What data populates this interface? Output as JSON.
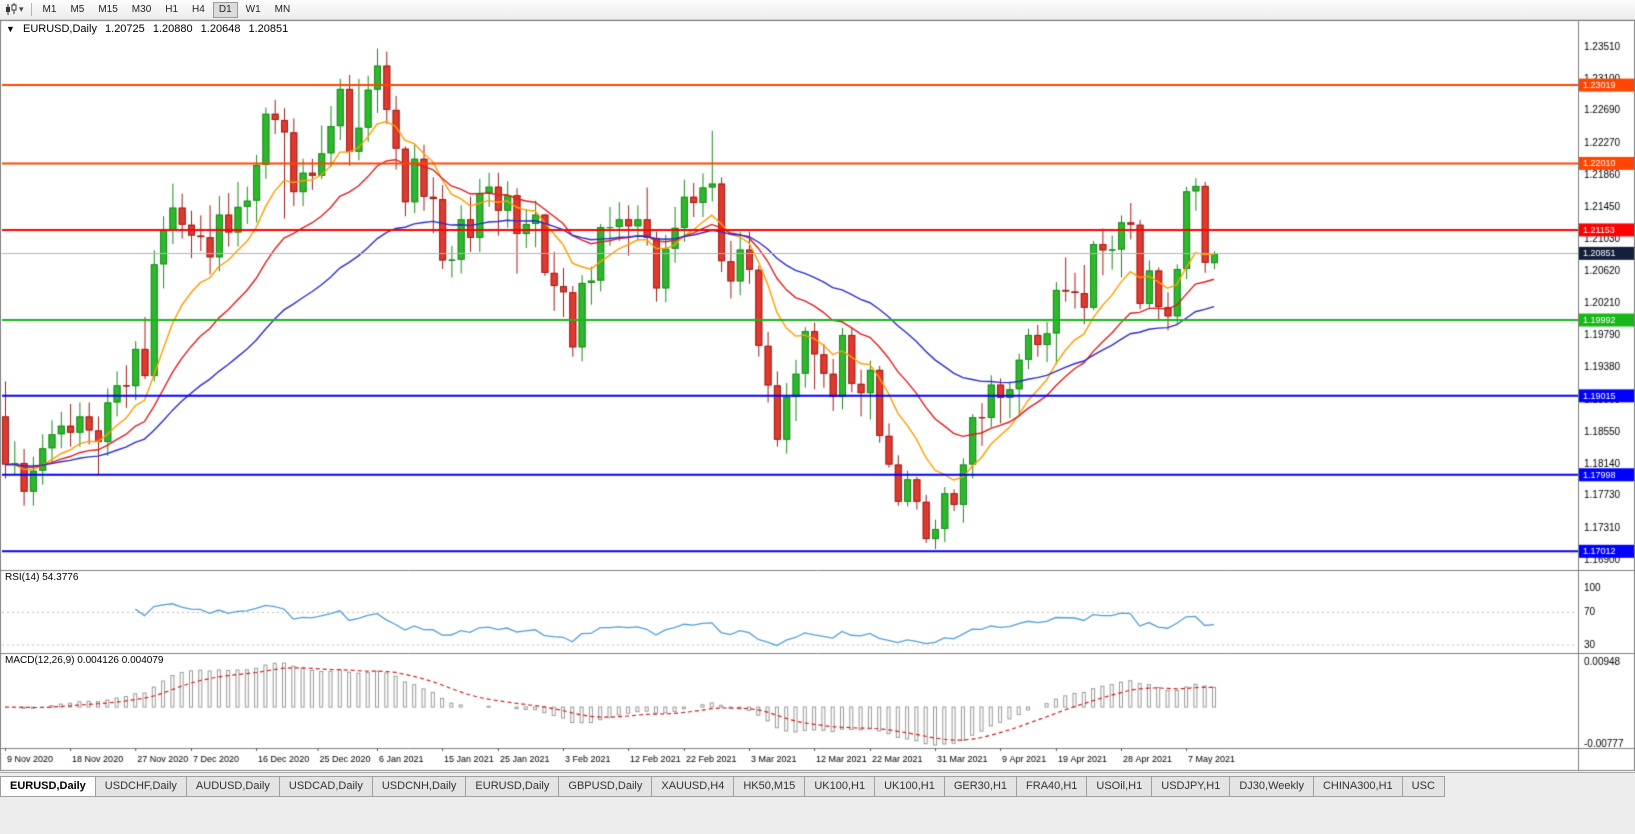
{
  "toolbar": {
    "timeframes": [
      "M1",
      "M5",
      "M15",
      "M30",
      "H1",
      "H4",
      "D1",
      "W1",
      "MN"
    ],
    "active_timeframe": "D1"
  },
  "chart_header": {
    "arrow": "▼",
    "symbol_period": "EURUSD,Daily",
    "open": "1.20725",
    "high": "1.20880",
    "low": "1.20648",
    "close": "1.20851"
  },
  "chart_data": {
    "type": "candlestick",
    "symbol": "EURUSD",
    "timeframe": "Daily",
    "price_axis_range": [
      1.169,
      1.2351
    ],
    "price_axis_labels": [
      "1.23510",
      "1.23100",
      "1.22690",
      "1.22270",
      "1.21860",
      "1.21450",
      "1.21030",
      "1.20620",
      "1.20210",
      "1.19790",
      "1.19380",
      "1.18960",
      "1.18550",
      "1.18140",
      "1.17730",
      "1.17310",
      "1.16900"
    ],
    "date_axis_labels": [
      {
        "label": "9 Nov 2020",
        "i": 0
      },
      {
        "label": "18 Nov 2020",
        "i": 7
      },
      {
        "label": "27 Nov 2020",
        "i": 14
      },
      {
        "label": "7 Dec 2020",
        "i": 20
      },
      {
        "label": "16 Dec 2020",
        "i": 27
      },
      {
        "label": "25 Dec 2020",
        "i": 33.6
      },
      {
        "label": "6 Jan 2021",
        "i": 40
      },
      {
        "label": "15 Jan 2021",
        "i": 47
      },
      {
        "label": "25 Jan 2021",
        "i": 53
      },
      {
        "label": "3 Feb 2021",
        "i": 60
      },
      {
        "label": "12 Feb 2021",
        "i": 67
      },
      {
        "label": "22 Feb 2021",
        "i": 73
      },
      {
        "label": "3 Mar 2021",
        "i": 80
      },
      {
        "label": "12 Mar 2021",
        "i": 87
      },
      {
        "label": "22 Mar 2021",
        "i": 93
      },
      {
        "label": "31 Mar 2021",
        "i": 100
      },
      {
        "label": "9 Apr 2021",
        "i": 107
      },
      {
        "label": "19 Apr 2021",
        "i": 113
      },
      {
        "label": "28 Apr 2021",
        "i": 120
      },
      {
        "label": "7 May 2021",
        "i": 127
      }
    ],
    "columns": [
      "date",
      "open",
      "high",
      "low",
      "close"
    ],
    "candles": [
      [
        "9 Nov 2020",
        1.1875,
        1.192,
        1.1795,
        1.1813
      ],
      [
        "10 Nov 2020",
        1.1813,
        1.1843,
        1.18,
        1.1815
      ],
      [
        "11 Nov 2020",
        1.1815,
        1.1833,
        1.176,
        1.1778
      ],
      [
        "12 Nov 2020",
        1.1778,
        1.1823,
        1.176,
        1.1805
      ],
      [
        "13 Nov 2020",
        1.1805,
        1.1852,
        1.1787,
        1.1834
      ],
      [
        "16 Nov 2020",
        1.1834,
        1.187,
        1.1816,
        1.1852
      ],
      [
        "17 Nov 2020",
        1.1852,
        1.1881,
        1.1834,
        1.1863
      ],
      [
        "18 Nov 2020",
        1.1863,
        1.1891,
        1.1836,
        1.1854
      ],
      [
        "19 Nov 2020",
        1.1854,
        1.1893,
        1.1836,
        1.1875
      ],
      [
        "20 Nov 2020",
        1.1875,
        1.1893,
        1.1839,
        1.1857
      ],
      [
        "23 Nov 2020",
        1.1857,
        1.1875,
        1.18,
        1.1842
      ],
      [
        "24 Nov 2020",
        1.1842,
        1.1911,
        1.1824,
        1.1893
      ],
      [
        "25 Nov 2020",
        1.1893,
        1.1933,
        1.1875,
        1.1915
      ],
      [
        "26 Nov 2020",
        1.1915,
        1.1941,
        1.1886,
        1.1914
      ],
      [
        "27 Nov 2020",
        1.1914,
        1.1972,
        1.1896,
        1.1962
      ],
      [
        "30 Nov 2020",
        1.1962,
        1.2003,
        1.1923,
        1.1927
      ],
      [
        "1 Dec 2020",
        1.1927,
        1.2089,
        1.192,
        1.2071
      ],
      [
        "2 Dec 2020",
        1.2071,
        1.2133,
        1.204,
        1.2115
      ],
      [
        "3 Dec 2020",
        1.2115,
        1.2175,
        1.2097,
        1.2144
      ],
      [
        "4 Dec 2020",
        1.2144,
        1.2162,
        1.2104,
        1.2122
      ],
      [
        "7 Dec 2020",
        1.2122,
        1.214,
        1.2079,
        1.2108
      ],
      [
        "8 Dec 2020",
        1.2108,
        1.2134,
        1.2088,
        1.2106
      ],
      [
        "9 Dec 2020",
        1.2106,
        1.2147,
        1.2058,
        1.208
      ],
      [
        "10 Dec 2020",
        1.208,
        1.2159,
        1.2062,
        1.2135
      ],
      [
        "11 Dec 2020",
        1.2135,
        1.2163,
        1.2094,
        1.2112
      ],
      [
        "14 Dec 2020",
        1.2112,
        1.2177,
        1.2094,
        1.2145
      ],
      [
        "15 Dec 2020",
        1.2145,
        1.2171,
        1.2123,
        1.2153
      ],
      [
        "16 Dec 2020",
        1.2153,
        1.2212,
        1.2125,
        1.2199
      ],
      [
        "17 Dec 2020",
        1.2199,
        1.2273,
        1.2181,
        1.2265
      ],
      [
        "18 Dec 2020",
        1.2265,
        1.2283,
        1.2239,
        1.2257
      ],
      [
        "21 Dec 2020",
        1.2257,
        1.2272,
        1.213,
        1.2241
      ],
      [
        "22 Dec 2020",
        1.2241,
        1.2259,
        1.2146,
        1.2164
      ],
      [
        "23 Dec 2020",
        1.2164,
        1.2207,
        1.2146,
        1.2189
      ],
      [
        "24 Dec 2020",
        1.2189,
        1.2207,
        1.2167,
        1.2185
      ],
      [
        "28 Dec 2020",
        1.2185,
        1.225,
        1.2181,
        1.2214
      ],
      [
        "29 Dec 2020",
        1.2214,
        1.2275,
        1.2196,
        1.2249
      ],
      [
        "30 Dec 2020",
        1.2249,
        1.231,
        1.2231,
        1.2297
      ],
      [
        "31 Dec 2020",
        1.2297,
        1.2315,
        1.2198,
        1.2216
      ],
      [
        "4 Jan 2021",
        1.2216,
        1.231,
        1.2205,
        1.2247
      ],
      [
        "5 Jan 2021",
        1.2247,
        1.2314,
        1.2229,
        1.2296
      ],
      [
        "6 Jan 2021",
        1.2296,
        1.2349,
        1.2266,
        1.2327
      ],
      [
        "7 Jan 2021",
        1.2327,
        1.2345,
        1.2252,
        1.227
      ],
      [
        "8 Jan 2021",
        1.227,
        1.2288,
        1.2193,
        1.222
      ],
      [
        "11 Jan 2021",
        1.222,
        1.2223,
        1.2133,
        1.2151
      ],
      [
        "12 Jan 2021",
        1.2151,
        1.2225,
        1.2137,
        1.2207
      ],
      [
        "13 Jan 2021",
        1.2207,
        1.2225,
        1.214,
        1.2158
      ],
      [
        "14 Jan 2021",
        1.2158,
        1.2183,
        1.2111,
        1.2155
      ],
      [
        "15 Jan 2021",
        1.2155,
        1.2173,
        1.2065,
        1.2076
      ],
      [
        "18 Jan 2021",
        1.2076,
        1.2095,
        1.2054,
        1.2077
      ],
      [
        "19 Jan 2021",
        1.2077,
        1.2147,
        1.2059,
        1.2129
      ],
      [
        "20 Jan 2021",
        1.2129,
        1.2158,
        1.2087,
        1.2105
      ],
      [
        "21 Jan 2021",
        1.2105,
        1.2181,
        1.2087,
        1.2163
      ],
      [
        "22 Jan 2021",
        1.2163,
        1.2189,
        1.2145,
        1.2171
      ],
      [
        "25 Jan 2021",
        1.2171,
        1.2189,
        1.2108,
        1.214
      ],
      [
        "26 Jan 2021",
        1.214,
        1.2178,
        1.2118,
        1.216
      ],
      [
        "27 Jan 2021",
        1.216,
        1.2169,
        1.2059,
        1.211
      ],
      [
        "28 Jan 2021",
        1.211,
        1.2142,
        1.2092,
        1.2123
      ],
      [
        "29 Jan 2021",
        1.2123,
        1.2153,
        1.2093,
        1.2135
      ],
      [
        "1 Feb 2021",
        1.2135,
        1.2136,
        1.2056,
        1.206
      ],
      [
        "2 Feb 2021",
        1.206,
        1.2087,
        1.2011,
        1.2043
      ],
      [
        "3 Feb 2021",
        1.2043,
        1.2066,
        1.2003,
        1.2035
      ],
      [
        "4 Feb 2021",
        1.2035,
        1.2043,
        1.1952,
        1.1964
      ],
      [
        "5 Feb 2021",
        1.1964,
        1.2057,
        1.1946,
        1.2047
      ],
      [
        "8 Feb 2021",
        1.2047,
        1.2068,
        1.2019,
        1.205
      ],
      [
        "9 Feb 2021",
        1.205,
        1.2123,
        1.2036,
        1.2119
      ],
      [
        "10 Feb 2021",
        1.2119,
        1.2145,
        1.2095,
        1.2119
      ],
      [
        "11 Feb 2021",
        1.2119,
        1.2151,
        1.2101,
        1.2129
      ],
      [
        "12 Feb 2021",
        1.2129,
        1.2147,
        1.2082,
        1.212
      ],
      [
        "15 Feb 2021",
        1.212,
        1.2147,
        1.2102,
        1.2129
      ],
      [
        "16 Feb 2021",
        1.2129,
        1.217,
        1.2095,
        1.2105
      ],
      [
        "17 Feb 2021",
        1.2105,
        1.2113,
        1.2023,
        1.204
      ],
      [
        "18 Feb 2021",
        1.204,
        1.2109,
        1.2022,
        1.2091
      ],
      [
        "19 Feb 2021",
        1.2091,
        1.2145,
        1.2073,
        1.2118
      ],
      [
        "22 Feb 2021",
        1.2118,
        1.218,
        1.21,
        1.2158
      ],
      [
        "23 Feb 2021",
        1.2158,
        1.2176,
        1.2132,
        1.215
      ],
      [
        "24 Feb 2021",
        1.215,
        1.2188,
        1.2132,
        1.217
      ],
      [
        "25 Feb 2021",
        1.217,
        1.2243,
        1.2152,
        1.2175
      ],
      [
        "26 Feb 2021",
        1.2175,
        1.2183,
        1.2061,
        1.2075
      ],
      [
        "1 Mar 2021",
        1.2075,
        1.2101,
        1.2027,
        1.2049
      ],
      [
        "2 Mar 2021",
        1.2049,
        1.2113,
        1.2031,
        1.209
      ],
      [
        "3 Mar 2021",
        1.209,
        1.2113,
        1.2046,
        1.2064
      ],
      [
        "4 Mar 2021",
        1.2064,
        1.2069,
        1.1952,
        1.1966
      ],
      [
        "5 Mar 2021",
        1.1966,
        1.1984,
        1.1893,
        1.1915
      ],
      [
        "8 Mar 2021",
        1.1915,
        1.1933,
        1.1836,
        1.1845
      ],
      [
        "9 Mar 2021",
        1.1845,
        1.1918,
        1.1827,
        1.19
      ],
      [
        "10 Mar 2021",
        1.19,
        1.1948,
        1.1869,
        1.193
      ],
      [
        "11 Mar 2021",
        1.193,
        1.199,
        1.1912,
        1.1985
      ],
      [
        "12 Mar 2021",
        1.1985,
        1.1996,
        1.191,
        1.1955
      ],
      [
        "15 Mar 2021",
        1.1955,
        1.1968,
        1.1912,
        1.193
      ],
      [
        "16 Mar 2021",
        1.193,
        1.1949,
        1.1882,
        1.19
      ],
      [
        "17 Mar 2021",
        1.19,
        1.1989,
        1.1884,
        1.198
      ],
      [
        "18 Mar 2021",
        1.198,
        1.1989,
        1.1906,
        1.1917
      ],
      [
        "19 Mar 2021",
        1.1917,
        1.1935,
        1.1875,
        1.1905
      ],
      [
        "22 Mar 2021",
        1.1905,
        1.1947,
        1.1871,
        1.1935
      ],
      [
        "23 Mar 2021",
        1.1935,
        1.194,
        1.1841,
        1.185
      ],
      [
        "24 Mar 2021",
        1.185,
        1.1866,
        1.1809,
        1.1813
      ],
      [
        "25 Mar 2021",
        1.1813,
        1.1825,
        1.176,
        1.1765
      ],
      [
        "26 Mar 2021",
        1.1765,
        1.1805,
        1.1759,
        1.1794
      ],
      [
        "29 Mar 2021",
        1.1794,
        1.1797,
        1.1755,
        1.1765
      ],
      [
        "30 Mar 2021",
        1.1765,
        1.1774,
        1.1712,
        1.1717
      ],
      [
        "31 Mar 2021",
        1.1717,
        1.1742,
        1.1704,
        1.173
      ],
      [
        "1 Apr 2021",
        1.173,
        1.1784,
        1.1713,
        1.1776
      ],
      [
        "2 Apr 2021",
        1.1776,
        1.1781,
        1.1753,
        1.1761
      ],
      [
        "5 Apr 2021",
        1.1761,
        1.1821,
        1.1738,
        1.1813
      ],
      [
        "6 Apr 2021",
        1.1813,
        1.1878,
        1.1795,
        1.1874
      ],
      [
        "7 Apr 2021",
        1.1874,
        1.1892,
        1.1837,
        1.1873
      ],
      [
        "8 Apr 2021",
        1.1873,
        1.1928,
        1.1861,
        1.1916
      ],
      [
        "9 Apr 2021",
        1.1916,
        1.1924,
        1.1866,
        1.1899
      ],
      [
        "12 Apr 2021",
        1.1899,
        1.192,
        1.1873,
        1.191
      ],
      [
        "13 Apr 2021",
        1.191,
        1.1956,
        1.1878,
        1.1948
      ],
      [
        "14 Apr 2021",
        1.1948,
        1.1988,
        1.1936,
        1.198
      ],
      [
        "15 Apr 2021",
        1.198,
        1.1993,
        1.1952,
        1.1967
      ],
      [
        "16 Apr 2021",
        1.1967,
        1.1997,
        1.1945,
        1.1982
      ],
      [
        "19 Apr 2021",
        1.1982,
        1.2048,
        1.1942,
        1.2038
      ],
      [
        "20 Apr 2021",
        1.2038,
        1.208,
        1.2023,
        1.2036
      ],
      [
        "21 Apr 2021",
        1.2036,
        1.206,
        1.2014,
        1.2034
      ],
      [
        "22 Apr 2021",
        1.2034,
        1.207,
        1.1994,
        1.2015
      ],
      [
        "23 Apr 2021",
        1.2015,
        1.2101,
        1.2012,
        1.2097
      ],
      [
        "26 Apr 2021",
        1.2097,
        1.2117,
        1.2057,
        1.2089
      ],
      [
        "27 Apr 2021",
        1.2089,
        1.2108,
        1.2064,
        1.209
      ],
      [
        "28 Apr 2021",
        1.209,
        1.2134,
        1.2054,
        1.2125
      ],
      [
        "29 Apr 2021",
        1.2125,
        1.215,
        1.2103,
        1.2122
      ],
      [
        "30 Apr 2021",
        1.2122,
        1.2128,
        1.2013,
        1.202
      ],
      [
        "3 May 2021",
        1.202,
        1.2076,
        1.2013,
        1.2063
      ],
      [
        "4 May 2021",
        1.2063,
        1.2067,
        1.1999,
        1.2016
      ],
      [
        "5 May 2021",
        1.2016,
        1.2035,
        1.1986,
        1.2004
      ],
      [
        "6 May 2021",
        1.2004,
        1.2071,
        1.1993,
        1.2065
      ],
      [
        "7 May 2021",
        1.2065,
        1.2171,
        1.2052,
        1.2165
      ],
      [
        "10 May 2021",
        1.2165,
        1.2182,
        1.214,
        1.2172
      ],
      [
        "11 May 2021",
        1.2172,
        1.2177,
        1.206,
        1.2073
      ],
      [
        "12 May 2021",
        1.20725,
        1.2088,
        1.20648,
        1.20851
      ]
    ],
    "colors": {
      "bull_fill": "#2eb82e",
      "bull_border": "#1d8a1d",
      "bear_fill": "#e03a30",
      "bear_border": "#9e1f18",
      "bid_line": "#b4b4b4",
      "bid_tag": "#13203c"
    },
    "moving_averages": [
      {
        "period": 10,
        "method": "ema",
        "color": "#ff9d00"
      },
      {
        "period": 20,
        "method": "ema",
        "color": "#e01f1f"
      },
      {
        "period": 40,
        "method": "ema",
        "color": "#2d2dd0"
      }
    ],
    "hlines": [
      {
        "price": 1.23019,
        "label": "1.23019",
        "color": "#ff4500"
      },
      {
        "price": 1.2201,
        "label": "1.22010",
        "color": "#ff4500"
      },
      {
        "price": 1.21153,
        "label": "1.21153",
        "color": "#ff0000"
      },
      {
        "price": 1.19992,
        "label": "1.19992",
        "color": "#17b717"
      },
      {
        "price": 1.19015,
        "label": "1.19015",
        "color": "#0000ff"
      },
      {
        "price": 1.17998,
        "label": "1.17998",
        "color": "#0000ff"
      },
      {
        "price": 1.17012,
        "label": "1.17012",
        "color": "#0000ff"
      }
    ],
    "bid": {
      "price": 1.20851,
      "label": "1.20851"
    },
    "indicators": {
      "rsi": {
        "label": "RSI(14)",
        "value": "54.3776",
        "period": 14,
        "levels": [
          70,
          30
        ],
        "axis_labels": [
          "100",
          "70",
          "30"
        ],
        "color": "#53a0d7"
      },
      "macd": {
        "label": "MACD(12,26,9)",
        "value_main": "0.004126",
        "value_signal": "0.004079",
        "fast": 12,
        "slow": 26,
        "signal": 9,
        "axis_labels": [
          "0.00948",
          "-0.00777"
        ],
        "axis_values": [
          0.00948,
          -0.00777
        ],
        "histogram_color": "#9a9a9a",
        "signal_color": "#d62020"
      }
    }
  },
  "tabs": {
    "items": [
      {
        "label": "EURUSD,Daily",
        "active": true
      },
      {
        "label": "USDCHF,Daily",
        "active": false
      },
      {
        "label": "AUDUSD,Daily",
        "active": false
      },
      {
        "label": "USDCAD,Daily",
        "active": false
      },
      {
        "label": "USDCNH,Daily",
        "active": false
      },
      {
        "label": "EURUSD,Daily",
        "active": false
      },
      {
        "label": "GBPUSD,Daily",
        "active": false
      },
      {
        "label": "XAUUSD,H4",
        "active": false
      },
      {
        "label": "HK50,M15",
        "active": false
      },
      {
        "label": "UK100,H1",
        "active": false
      },
      {
        "label": "UK100,H1",
        "active": false
      },
      {
        "label": "GER30,H1",
        "active": false
      },
      {
        "label": "FRA40,H1",
        "active": false
      },
      {
        "label": "USOil,H1",
        "active": false
      },
      {
        "label": "USDJPY,H1",
        "active": false
      },
      {
        "label": "DJ30,Weekly",
        "active": false
      },
      {
        "label": "CHINA300,H1",
        "active": false
      },
      {
        "label": "USC",
        "active": false
      }
    ]
  }
}
